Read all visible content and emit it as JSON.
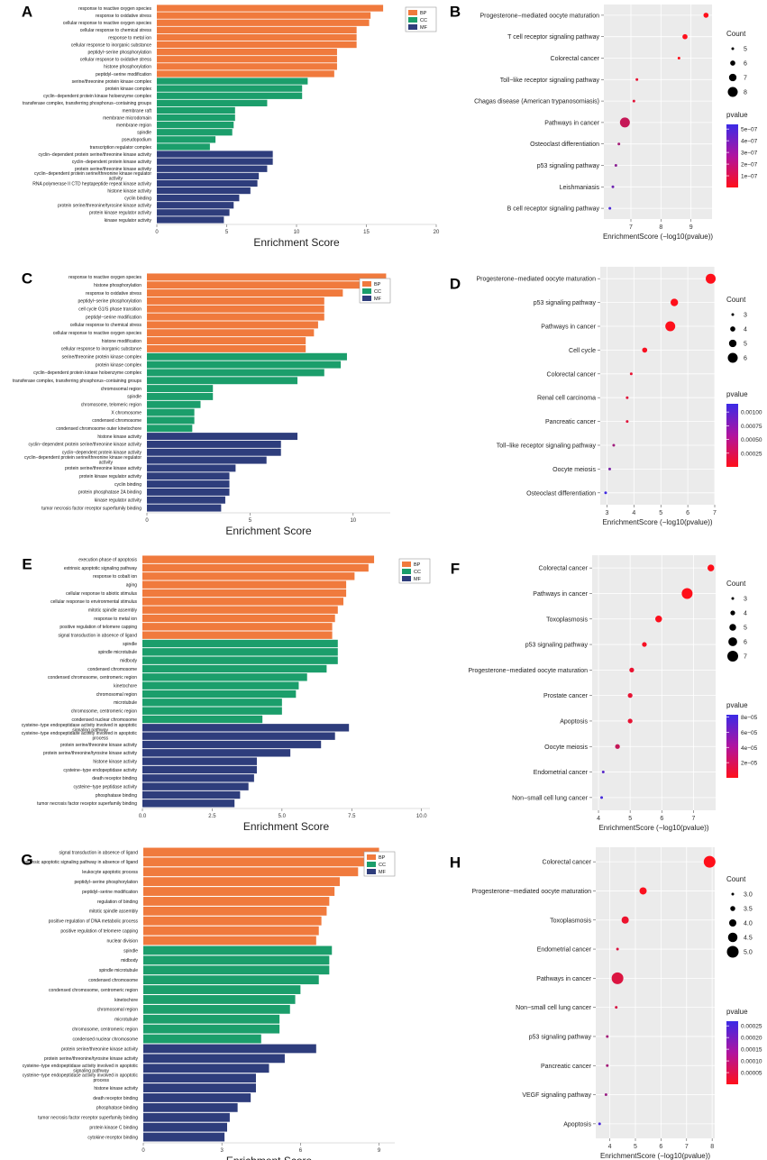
{
  "figure": {
    "legend_labels": [
      "BP",
      "CC",
      "MF"
    ],
    "colors": {
      "BP": "#F07A3D",
      "CC": "#1B9E6B",
      "MF": "#2E3D7C",
      "pvalue_high": "#3B2BE6",
      "pvalue_low": "#FF0F1A",
      "panel_bg": "#EBEBEB",
      "grid": "#FFFFFF"
    }
  },
  "chart_data": [
    {
      "panel": "A",
      "type": "bar",
      "orientation": "horizontal",
      "xlabel": "Enrichment Score",
      "xlim": [
        0,
        20
      ],
      "xticks": [
        0,
        5,
        10,
        15,
        20
      ],
      "categories": [
        "response to reactive oxygen species",
        "response to oxidative stress",
        "cellular response to reactive oxygen species",
        "cellular response to chemical stress",
        "response to metal ion",
        "cellular response to inorganic substance",
        "peptidyl−serine phosphorylation",
        "cellular response to oxidative stress",
        "histone phosphorylation",
        "peptidyl−serine modification",
        "serine/threonine protein kinase complex",
        "protein kinase complex",
        "cyclin−dependent protein kinase holoenzyme complex",
        "transferase complex, transferring phosphorus−containing groups",
        "membrane raft",
        "membrane microdomain",
        "membrane region",
        "spindle",
        "pseudopodium",
        "transcription regulator complex",
        "cyclin−dependent protein serine/threonine kinase activity",
        "cyclin−dependent protein kinase activity",
        "protein serine/threonine kinase activity",
        "cyclin−dependent protein serine/threonine kinase regulator activity",
        "RNA polymerase II CTD heptapeptide repeat kinase activity",
        "histone kinase activity",
        "cyclin binding",
        "protein serine/threonine/tyrosine kinase activity",
        "protein kinase regulator activity",
        "kinase regulator activity"
      ],
      "groups": [
        "BP",
        "BP",
        "BP",
        "BP",
        "BP",
        "BP",
        "BP",
        "BP",
        "BP",
        "BP",
        "CC",
        "CC",
        "CC",
        "CC",
        "CC",
        "CC",
        "CC",
        "CC",
        "CC",
        "CC",
        "MF",
        "MF",
        "MF",
        "MF",
        "MF",
        "MF",
        "MF",
        "MF",
        "MF",
        "MF"
      ],
      "values": [
        16.2,
        15.3,
        15.2,
        14.3,
        14.3,
        14.3,
        12.9,
        12.9,
        12.9,
        12.7,
        10.8,
        10.4,
        10.4,
        7.9,
        5.6,
        5.6,
        5.5,
        5.4,
        4.2,
        3.8,
        8.3,
        8.3,
        7.9,
        7.3,
        7.2,
        6.7,
        5.9,
        5.5,
        5.2,
        4.8
      ]
    },
    {
      "panel": "B",
      "type": "scatter",
      "subtype": "dotplot",
      "xlabel": "EnrichmentScore (−log10(pvalue))",
      "xlim": [
        6.1,
        9.7
      ],
      "xticks": [
        7,
        8,
        9
      ],
      "categories": [
        "Progesterone−mediated oocyte maturation",
        "T cell receptor signaling pathway",
        "Colorectal cancer",
        "Toll−like receptor signaling pathway",
        "Chagas disease (American trypanosomiasis)",
        "Pathways in cancer",
        "Osteoclast differentiation",
        "p53 signaling pathway",
        "Leishmaniasis",
        "B cell receptor signaling pathway"
      ],
      "x": [
        9.5,
        8.8,
        8.6,
        7.2,
        7.1,
        6.8,
        6.6,
        6.5,
        6.4,
        6.3
      ],
      "count": [
        6,
        6,
        5,
        5,
        5,
        8,
        5,
        3,
        3,
        3
      ],
      "pvalue": [
        3e-10,
        1.6e-09,
        2.5e-09,
        6.3e-08,
        7.9e-08,
        1.6e-07,
        2.5e-07,
        3.2e-07,
        4e-07,
        5e-07
      ],
      "size_legend": {
        "title": "Count",
        "values": [
          5,
          6,
          7,
          8
        ],
        "labels": [
          "5",
          "6",
          "7",
          "8"
        ]
      },
      "color_legend": {
        "title": "pvalue",
        "max": 5.4e-07,
        "ticks": [
          5e-07,
          4e-07,
          3e-07,
          2e-07,
          1e-07
        ],
        "labels": [
          "5e−07",
          "4e−07",
          "3e−07",
          "2e−07",
          "1e−07"
        ]
      }
    },
    {
      "panel": "C",
      "type": "bar",
      "orientation": "horizontal",
      "xlabel": "Enrichment Score",
      "xlim": [
        0,
        11.8
      ],
      "xticks": [
        0,
        5,
        10
      ],
      "categories": [
        "response to reactive oxygen species",
        "histone phosphorylation",
        "response to oxidative stress",
        "peptidyl−serine phosphorylation",
        "cell cycle G1/S phase transition",
        "peptidyl−serine modification",
        "cellular response to chemical stress",
        "cellular response to reactive oxygen species",
        "histone modification",
        "cellular response to inorganic substance",
        "serine/threonine protein kinase complex",
        "protein kinase complex",
        "cyclin−dependent protein kinase holoenzyme complex",
        "transferase complex, transferring phosphorus−containing groups",
        "chromosomal region",
        "spindle",
        "chromosome, telomeric region",
        "X chromosome",
        "condensed chromosome",
        "condensed chromosome outer kinetochore",
        "histone kinase activity",
        "cyclin−dependent protein serine/threonine kinase activity",
        "cyclin−dependent protein kinase activity",
        "cyclin−dependent protein serine/threonine kinase regulator activity",
        "protein serine/threonine kinase activity",
        "protein kinase regulator activity",
        "cyclin binding",
        "protein phosphatase 2A binding",
        "kinase regulator activity",
        "tumor necrosis factor receptor superfamily binding"
      ],
      "groups": [
        "BP",
        "BP",
        "BP",
        "BP",
        "BP",
        "BP",
        "BP",
        "BP",
        "BP",
        "BP",
        "CC",
        "CC",
        "CC",
        "CC",
        "CC",
        "CC",
        "CC",
        "CC",
        "CC",
        "CC",
        "MF",
        "MF",
        "MF",
        "MF",
        "MF",
        "MF",
        "MF",
        "MF",
        "MF",
        "MF"
      ],
      "values": [
        11.6,
        11.2,
        9.5,
        8.6,
        8.6,
        8.6,
        8.3,
        8.1,
        7.7,
        7.7,
        9.7,
        9.4,
        8.6,
        7.3,
        3.2,
        3.2,
        2.6,
        2.3,
        2.3,
        2.2,
        7.3,
        6.5,
        6.5,
        5.8,
        4.3,
        4.0,
        4.0,
        4.0,
        3.8,
        3.6
      ]
    },
    {
      "panel": "D",
      "type": "scatter",
      "subtype": "dotplot",
      "xlabel": "EnrichmentScore (−log10(pvalue))",
      "xlim": [
        2.75,
        7.0
      ],
      "xticks": [
        3,
        4,
        5,
        6,
        7
      ],
      "categories": [
        "Progesterone−mediated oocyte maturation",
        "p53 signaling pathway",
        "Pathways in cancer",
        "Cell cycle",
        "Colorectal cancer",
        "Renal cell carcinoma",
        "Pancreatic cancer",
        "Toll−like receptor signaling pathway",
        "Oocyte meiosis",
        "Osteoclast differentiation"
      ],
      "x": [
        6.85,
        5.5,
        5.35,
        4.4,
        3.9,
        3.75,
        3.75,
        3.25,
        3.1,
        2.95
      ],
      "count": [
        6,
        5,
        6,
        4,
        3,
        3,
        3,
        3,
        3,
        3
      ],
      "pvalue": [
        1.4e-07,
        3.2e-06,
        4.5e-06,
        4e-05,
        0.00013,
        0.00018,
        0.00018,
        0.00056,
        0.00079,
        0.00112
      ],
      "size_legend": {
        "title": "Count",
        "values": [
          3,
          4,
          5,
          6
        ],
        "labels": [
          "3",
          "4",
          "5",
          "6"
        ]
      },
      "color_legend": {
        "title": "pvalue",
        "max": 0.00115,
        "ticks": [
          0.001,
          0.00075,
          0.0005,
          0.00025
        ],
        "labels": [
          "0.00100",
          "0.00075",
          "0.00050",
          "0.00025"
        ]
      }
    },
    {
      "panel": "E",
      "type": "bar",
      "orientation": "horizontal",
      "xlabel": "Enrichment Score",
      "xlim": [
        0,
        10.3
      ],
      "xticks": [
        0,
        2.5,
        5,
        7.5,
        10
      ],
      "xticklabels": [
        "0.0",
        "2.5",
        "5.0",
        "7.5",
        "10.0"
      ],
      "categories": [
        "execution phase of apoptosis",
        "extrinsic apoptotic signaling pathway",
        "response to cobalt ion",
        "aging",
        "cellular response to abiotic stimulus",
        "cellular response to environmental stimulus",
        "mitotic spindle assembly",
        "response to metal ion",
        "positive regulation of telomere capping",
        "signal transduction in absence of ligand",
        "spindle",
        "spindle microtubule",
        "midbody",
        "condensed chromosome",
        "condensed chromosome, centromeric region",
        "kinetochore",
        "chromosomal region",
        "microtubule",
        "chromosome, centromeric region",
        "condensed nuclear chromosome",
        "cysteine−type endopeptidase activity involved in apoptotic signaling pathway",
        "cysteine−type endopeptidase activity involved in apoptotic process",
        "protein serine/threonine kinase activity",
        "protein serine/threonine/tyrosine kinase activity",
        "histone kinase activity",
        "cysteine−type endopeptidase activity",
        "death receptor binding",
        "cysteine−type peptidase activity",
        "phosphatase binding",
        "tumor necrosis factor receptor superfamily binding"
      ],
      "groups": [
        "BP",
        "BP",
        "BP",
        "BP",
        "BP",
        "BP",
        "BP",
        "BP",
        "BP",
        "BP",
        "CC",
        "CC",
        "CC",
        "CC",
        "CC",
        "CC",
        "CC",
        "CC",
        "CC",
        "CC",
        "MF",
        "MF",
        "MF",
        "MF",
        "MF",
        "MF",
        "MF",
        "MF",
        "MF",
        "MF"
      ],
      "values": [
        8.3,
        8.1,
        7.6,
        7.3,
        7.3,
        7.2,
        7.0,
        6.9,
        6.8,
        6.8,
        7.0,
        7.0,
        7.0,
        6.6,
        5.9,
        5.6,
        5.5,
        5.0,
        5.0,
        4.3,
        7.4,
        6.9,
        6.4,
        5.3,
        4.1,
        4.1,
        4.0,
        3.8,
        3.5,
        3.3
      ]
    },
    {
      "panel": "F",
      "type": "scatter",
      "subtype": "dotplot",
      "xlabel": "EnrichmentScore (−log10(pvalue))",
      "xlim": [
        3.8,
        7.7
      ],
      "xticks": [
        4,
        5,
        6,
        7
      ],
      "categories": [
        "Colorectal cancer",
        "Pathways in cancer",
        "Toxoplasmosis",
        "p53 signaling pathway",
        "Progesterone−mediated oocyte maturation",
        "Prostate cancer",
        "Apoptosis",
        "Oocyte meiosis",
        "Endometrial cancer",
        "Non−small cell lung cancer"
      ],
      "x": [
        7.55,
        6.8,
        5.9,
        5.45,
        5.05,
        5.0,
        5.0,
        4.6,
        4.15,
        4.1
      ],
      "count": [
        5,
        7,
        5,
        4,
        4,
        4,
        4,
        4,
        3,
        3
      ],
      "pvalue": [
        2.8e-08,
        1.6e-07,
        1.3e-06,
        3.5e-06,
        8.9e-06,
        1e-05,
        1e-05,
        2.5e-05,
        7.1e-05,
        7.9e-05
      ],
      "size_legend": {
        "title": "Count",
        "values": [
          3,
          4,
          5,
          6,
          7
        ],
        "labels": [
          "3",
          "4",
          "5",
          "6",
          "7"
        ]
      },
      "color_legend": {
        "title": "pvalue",
        "max": 8.3e-05,
        "ticks": [
          8e-05,
          6e-05,
          4e-05,
          2e-05
        ],
        "labels": [
          "8e−05",
          "6e−05",
          "4e−05",
          "2e−05"
        ]
      }
    },
    {
      "panel": "G",
      "type": "bar",
      "orientation": "horizontal",
      "xlabel": "Enrichment Score",
      "xlim": [
        0,
        9.6
      ],
      "xticks": [
        0,
        3,
        6,
        9
      ],
      "categories": [
        "signal transduction in absence of ligand",
        "extrinsic apoptotic signaling pathway in absence of ligand",
        "leukocyte apoptotic process",
        "peptidyl−serine phosphorylation",
        "peptidyl−serine modification",
        "regulation of binding",
        "mitotic spindle assembly",
        "positive regulation of DNA metabolic process",
        "positive regulation of telomere capping",
        "nuclear division",
        "spindle",
        "midbody",
        "spindle microtubule",
        "condensed chromosome",
        "condensed chromosome, centromeric region",
        "kinetochore",
        "chromosomal region",
        "microtubule",
        "chromosome, centromeric region",
        "condensed nuclear chromosome",
        "protein serine/threonine kinase activity",
        "protein serine/threonine/tyrosine kinase activity",
        "cysteine−type endopeptidase activity involved in apoptotic signaling pathway",
        "cysteine−type endopeptidase activity involved in apoptotic process",
        "histone kinase activity",
        "death receptor binding",
        "phosphatase binding",
        "tumor necrosis factor receptor superfamily binding",
        "protein kinase C binding",
        "cytokine receptor binding"
      ],
      "groups": [
        "BP",
        "BP",
        "BP",
        "BP",
        "BP",
        "BP",
        "BP",
        "BP",
        "BP",
        "BP",
        "CC",
        "CC",
        "CC",
        "CC",
        "CC",
        "CC",
        "CC",
        "CC",
        "CC",
        "CC",
        "MF",
        "MF",
        "MF",
        "MF",
        "MF",
        "MF",
        "MF",
        "MF",
        "MF",
        "MF"
      ],
      "values": [
        9.0,
        9.0,
        8.2,
        7.5,
        7.3,
        7.1,
        7.0,
        6.8,
        6.7,
        6.6,
        7.2,
        7.1,
        7.1,
        6.7,
        6.0,
        5.8,
        5.6,
        5.2,
        5.2,
        4.5,
        6.6,
        5.4,
        4.8,
        4.3,
        4.3,
        4.1,
        3.6,
        3.3,
        3.2,
        3.1
      ]
    },
    {
      "panel": "H",
      "type": "scatter",
      "subtype": "dotplot",
      "xlabel": "EnrichmentScore (−log10(pvalue))",
      "xlim": [
        3.45,
        8.1
      ],
      "xticks": [
        4,
        5,
        6,
        7,
        8
      ],
      "categories": [
        "Colorectal cancer",
        "Progesterone−mediated oocyte maturation",
        "Toxoplasmosis",
        "Endometrial cancer",
        "Pathways in cancer",
        "Non−small cell lung cancer",
        "p53 signaling pathway",
        "Pancreatic cancer",
        "VEGF signaling pathway",
        "Apoptosis"
      ],
      "x": [
        7.9,
        5.3,
        4.6,
        4.3,
        4.3,
        4.25,
        3.9,
        3.9,
        3.85,
        3.6
      ],
      "count": [
        5,
        4,
        4,
        3,
        5,
        3,
        3,
        3,
        3,
        3
      ],
      "pvalue": [
        1.3e-08,
        5e-06,
        2.5e-05,
        5e-05,
        5e-05,
        5.6e-05,
        0.000126,
        0.000126,
        0.000141,
        0.000251
      ],
      "size_legend": {
        "title": "Count",
        "values": [
          3.0,
          3.5,
          4.0,
          4.5,
          5.0
        ],
        "labels": [
          "3.0",
          "3.5",
          "4.0",
          "4.5",
          "5.0"
        ]
      },
      "color_legend": {
        "title": "pvalue",
        "max": 0.00027,
        "ticks": [
          0.00025,
          0.0002,
          0.00015,
          0.0001,
          5e-05
        ],
        "labels": [
          "0.00025",
          "0.00020",
          "0.00015",
          "0.00010",
          "0.00005"
        ]
      }
    }
  ]
}
